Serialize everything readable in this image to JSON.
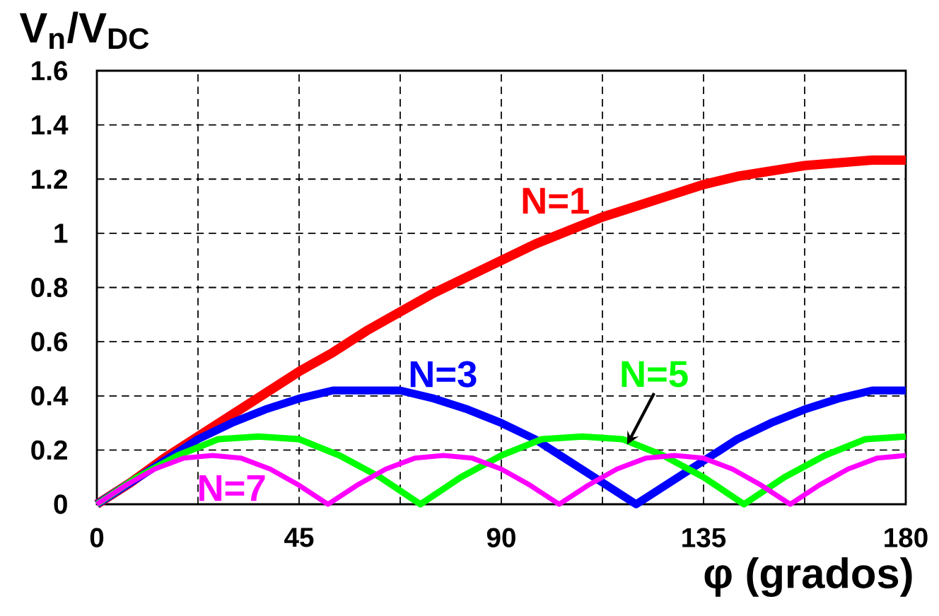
{
  "chart_data": {
    "type": "line",
    "xlabel": "φ (grados)",
    "ylabel": "V$_{n}$/V$_{DC}$",
    "xlim": [
      0,
      180
    ],
    "ylim": [
      0,
      1.6
    ],
    "xticks": [
      0,
      {
        "value": 22.5,
        "label": null
      },
      45,
      {
        "value": 67.5,
        "label": null
      },
      90,
      {
        "value": 112.5,
        "label": null
      },
      135,
      {
        "value": 157.5,
        "label": null
      },
      180
    ],
    "yticks": [
      0,
      0.2,
      0.4,
      0.6,
      0.8,
      1,
      1.2,
      1.4,
      1.6
    ],
    "grid": true,
    "series": [
      {
        "name": "N=1",
        "color": "#ff0000",
        "x": [
          0,
          7.5,
          15,
          22.5,
          30,
          37.5,
          45,
          52.5,
          60,
          67.5,
          75,
          82.5,
          90,
          97.5,
          105,
          112.5,
          120,
          127.5,
          135,
          142.5,
          150,
          157.5,
          165,
          172.5,
          180
        ],
        "values": [
          0,
          0.08,
          0.17,
          0.25,
          0.33,
          0.41,
          0.49,
          0.56,
          0.64,
          0.71,
          0.78,
          0.84,
          0.9,
          0.96,
          1.01,
          1.06,
          1.1,
          1.14,
          1.18,
          1.21,
          1.23,
          1.25,
          1.26,
          1.27,
          1.27
        ]
      },
      {
        "name": "N=3",
        "color": "#0000ff",
        "x": [
          0,
          7.5,
          15,
          22.5,
          30,
          37.5,
          45,
          52.5,
          60,
          67.5,
          75,
          82.5,
          90,
          97.5,
          105,
          112.5,
          120,
          127.5,
          135,
          142.5,
          150,
          157.5,
          165,
          172.5,
          180
        ],
        "values": [
          0,
          0.08,
          0.16,
          0.24,
          0.3,
          0.35,
          0.39,
          0.42,
          0.42,
          0.42,
          0.39,
          0.35,
          0.3,
          0.24,
          0.16,
          0.08,
          0,
          0.08,
          0.16,
          0.24,
          0.3,
          0.35,
          0.39,
          0.42,
          0.42
        ]
      },
      {
        "name": "N=5",
        "color": "#00ff00",
        "x": [
          0,
          9,
          18,
          27,
          36,
          45,
          54,
          63,
          72,
          81,
          90,
          99,
          108,
          117,
          126,
          135,
          144,
          153,
          162,
          171,
          180
        ],
        "values": [
          0,
          0.1,
          0.18,
          0.24,
          0.25,
          0.24,
          0.18,
          0.1,
          0,
          0.1,
          0.18,
          0.24,
          0.25,
          0.24,
          0.18,
          0.1,
          0,
          0.1,
          0.18,
          0.24,
          0.25
        ]
      },
      {
        "name": "N=7",
        "color": "#ff00ff",
        "x": [
          0,
          6.43,
          12.86,
          19.29,
          25.71,
          32.14,
          38.57,
          45,
          51.43,
          57.86,
          64.29,
          70.71,
          77.14,
          83.57,
          90,
          96.43,
          102.86,
          109.29,
          115.71,
          122.14,
          128.57,
          135,
          141.43,
          147.86,
          154.29,
          160.71,
          167.14,
          173.57,
          180
        ],
        "values": [
          0,
          0.07,
          0.13,
          0.17,
          0.18,
          0.17,
          0.13,
          0.07,
          0,
          0.07,
          0.13,
          0.17,
          0.18,
          0.17,
          0.13,
          0.07,
          0,
          0.07,
          0.13,
          0.17,
          0.18,
          0.17,
          0.13,
          0.07,
          0,
          0.07,
          0.13,
          0.17,
          0.18
        ]
      }
    ]
  }
}
